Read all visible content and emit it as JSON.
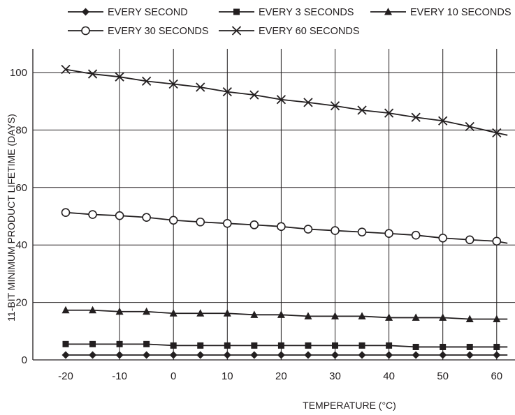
{
  "chart_data": {
    "type": "line",
    "title": "",
    "xlabel": "TEMPERATURE (°C)",
    "ylabel": "11-BIT MINIMUM PRODUCT LIFETIME (DAYS)",
    "xlim": [
      -22,
      62
    ],
    "ylim": [
      0,
      107
    ],
    "xticks": [
      -20,
      -10,
      0,
      10,
      20,
      30,
      40,
      50,
      60
    ],
    "yticks": [
      0,
      20,
      40,
      60,
      80,
      100
    ],
    "x": [
      -20,
      -15,
      -10,
      -5,
      0,
      5,
      10,
      15,
      20,
      25,
      30,
      35,
      40,
      45,
      50,
      55,
      60
    ],
    "x_end": 62,
    "grid": true,
    "legend_position": "top",
    "color": "#231f20",
    "series": [
      {
        "name": "EVERY SECOND",
        "marker": "diamond",
        "values": [
          1.7,
          1.7,
          1.7,
          1.7,
          1.7,
          1.7,
          1.7,
          1.7,
          1.7,
          1.7,
          1.7,
          1.7,
          1.7,
          1.7,
          1.7,
          1.7,
          1.7
        ],
        "end_value": 1.7
      },
      {
        "name": "EVERY 3 SECONDS",
        "marker": "square",
        "values": [
          5.5,
          5.5,
          5.5,
          5.5,
          5.0,
          5.0,
          5.0,
          5.0,
          5.0,
          5.0,
          5.0,
          5.0,
          5.0,
          4.5,
          4.5,
          4.5,
          4.5
        ],
        "end_value": 4.5
      },
      {
        "name": "EVERY 10 SECONDS",
        "marker": "triangle",
        "values": [
          17.3,
          17.3,
          16.8,
          16.8,
          16.2,
          16.2,
          16.2,
          15.7,
          15.7,
          15.2,
          15.2,
          15.2,
          14.7,
          14.7,
          14.7,
          14.2,
          14.2
        ],
        "end_value": 14.2
      },
      {
        "name": "EVERY 30 SECONDS",
        "marker": "circle",
        "values": [
          51.3,
          50.6,
          50.2,
          49.6,
          48.6,
          48.0,
          47.5,
          47.0,
          46.4,
          45.5,
          45.0,
          44.5,
          44.0,
          43.4,
          42.4,
          41.8,
          41.3
        ],
        "end_value": 40.6
      },
      {
        "name": "EVERY 60 SECONDS",
        "marker": "x",
        "values": [
          101.1,
          99.5,
          98.5,
          97.0,
          96.0,
          94.9,
          93.3,
          92.2,
          90.6,
          89.6,
          88.4,
          86.9,
          85.9,
          84.4,
          83.2,
          81.2,
          79.0
        ],
        "end_value": 78.2
      }
    ]
  }
}
